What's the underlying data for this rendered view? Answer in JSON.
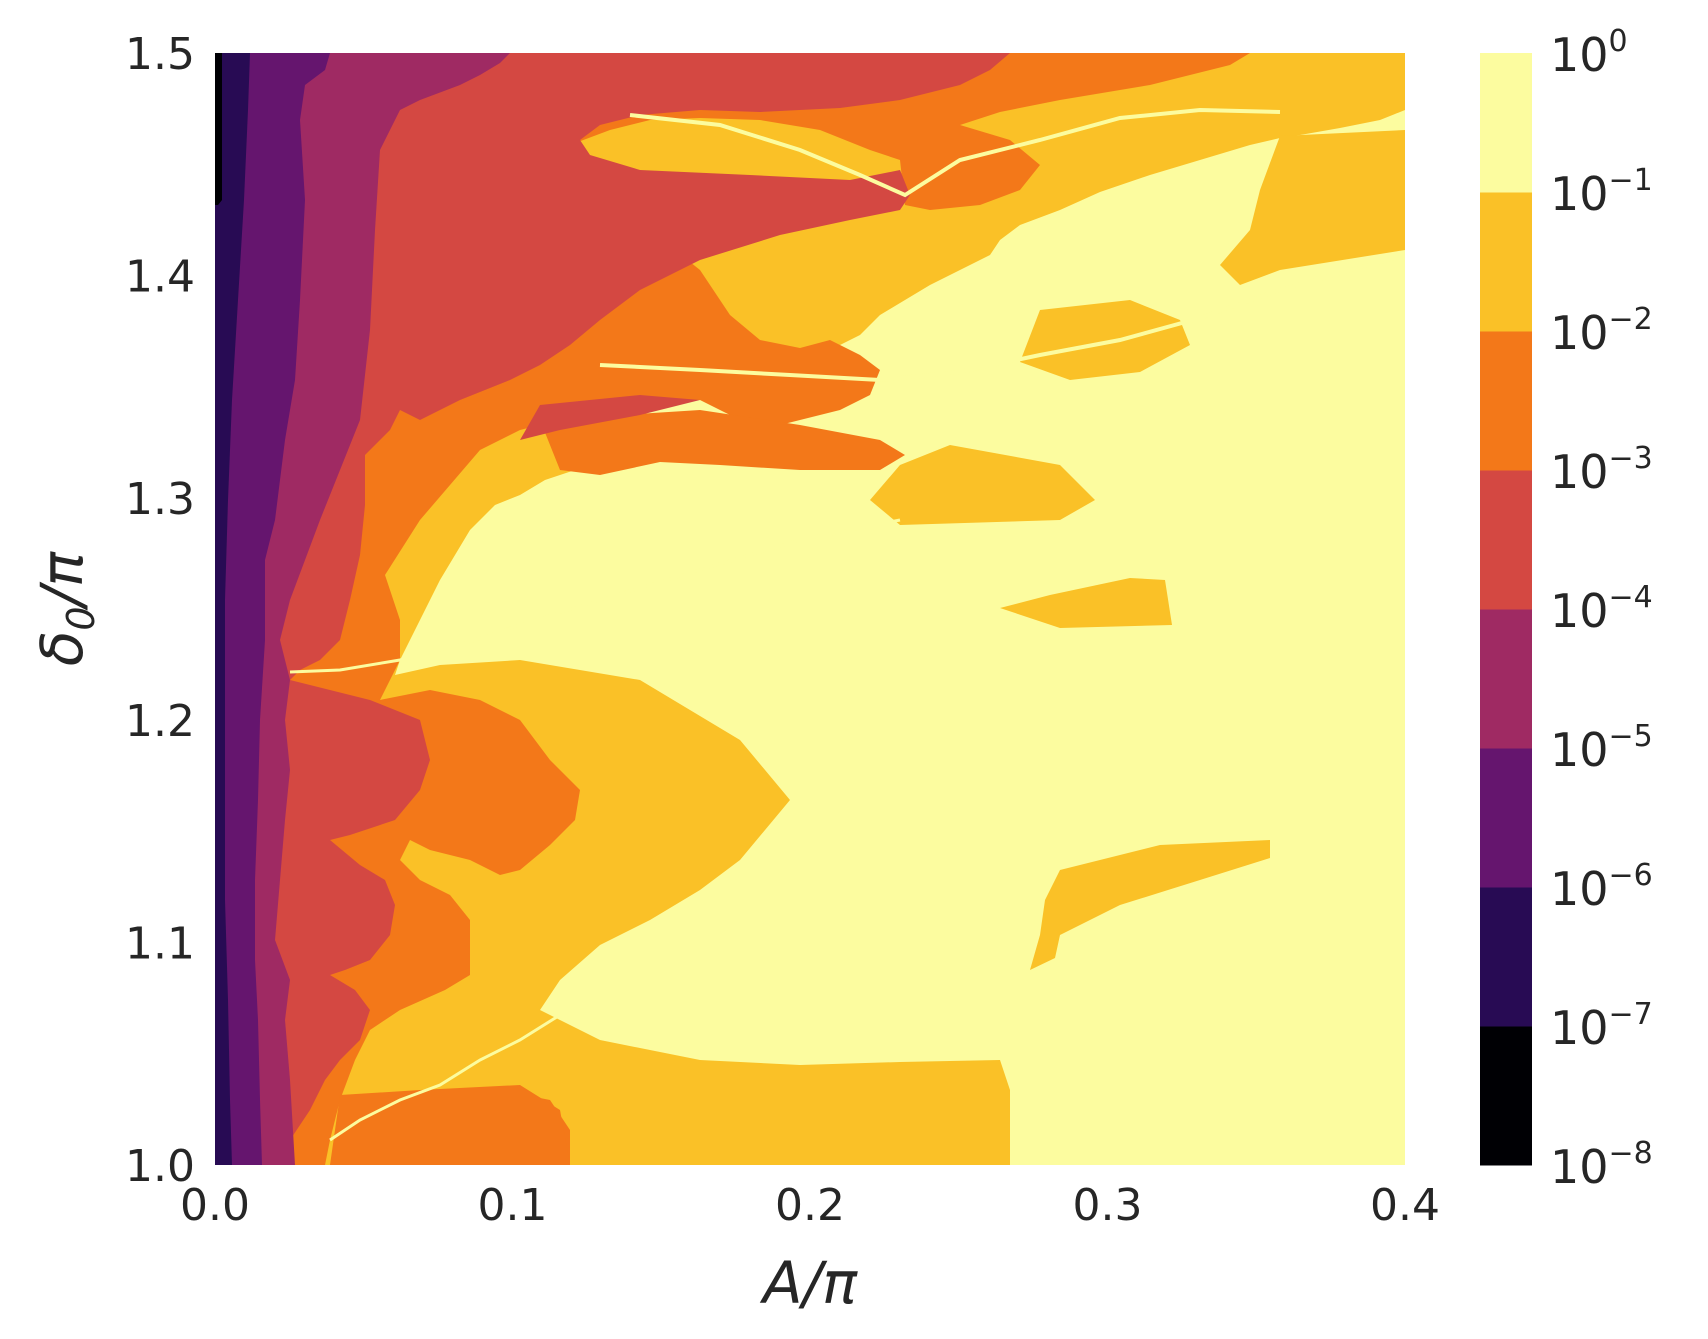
{
  "chart_data": {
    "type": "heatmap",
    "title": "",
    "xlabel": "A/π",
    "ylabel_main": "δ",
    "ylabel_sub": "0",
    "ylabel_tail": "/π",
    "xlim": [
      0.0,
      0.4
    ],
    "ylim": [
      1.0,
      1.5
    ],
    "x_ticks": [
      {
        "value": 0.0,
        "label": "0.0"
      },
      {
        "value": 0.1,
        "label": "0.1"
      },
      {
        "value": 0.2,
        "label": "0.2"
      },
      {
        "value": 0.3,
        "label": "0.3"
      },
      {
        "value": 0.4,
        "label": "0.4"
      }
    ],
    "y_ticks": [
      {
        "value": 1.0,
        "label": "1.0"
      },
      {
        "value": 1.1,
        "label": "1.1"
      },
      {
        "value": 1.2,
        "label": "1.2"
      },
      {
        "value": 1.3,
        "label": "1.3"
      },
      {
        "value": 1.4,
        "label": "1.4"
      },
      {
        "value": 1.5,
        "label": "1.5"
      }
    ],
    "colorbar": {
      "scale": "log",
      "levels": [
        {
          "label_base": "10",
          "label_exp": "0"
        },
        {
          "label_base": "10",
          "label_exp": "−1"
        },
        {
          "label_base": "10",
          "label_exp": "−2"
        },
        {
          "label_base": "10",
          "label_exp": "−3"
        },
        {
          "label_base": "10",
          "label_exp": "−4"
        },
        {
          "label_base": "10",
          "label_exp": "−5"
        },
        {
          "label_base": "10",
          "label_exp": "−6"
        },
        {
          "label_base": "10",
          "label_exp": "−7"
        },
        {
          "label_base": "10",
          "label_exp": "−8"
        }
      ],
      "bands_low_to_high": [
        "#000004",
        "#280b54",
        "#65156e",
        "#9f2a63",
        "#d44842",
        "#f37819",
        "#fac127",
        "#fcfc9f"
      ]
    },
    "grid": false
  }
}
